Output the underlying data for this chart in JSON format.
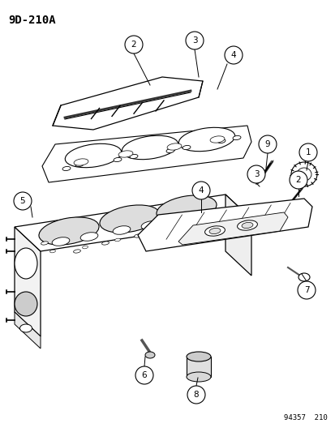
{
  "title": "9D-210A",
  "catalog_number": "94357  210",
  "bg_color": "#ffffff",
  "fg_color": "#000000",
  "fig_width": 4.14,
  "fig_height": 5.33,
  "dpi": 100
}
